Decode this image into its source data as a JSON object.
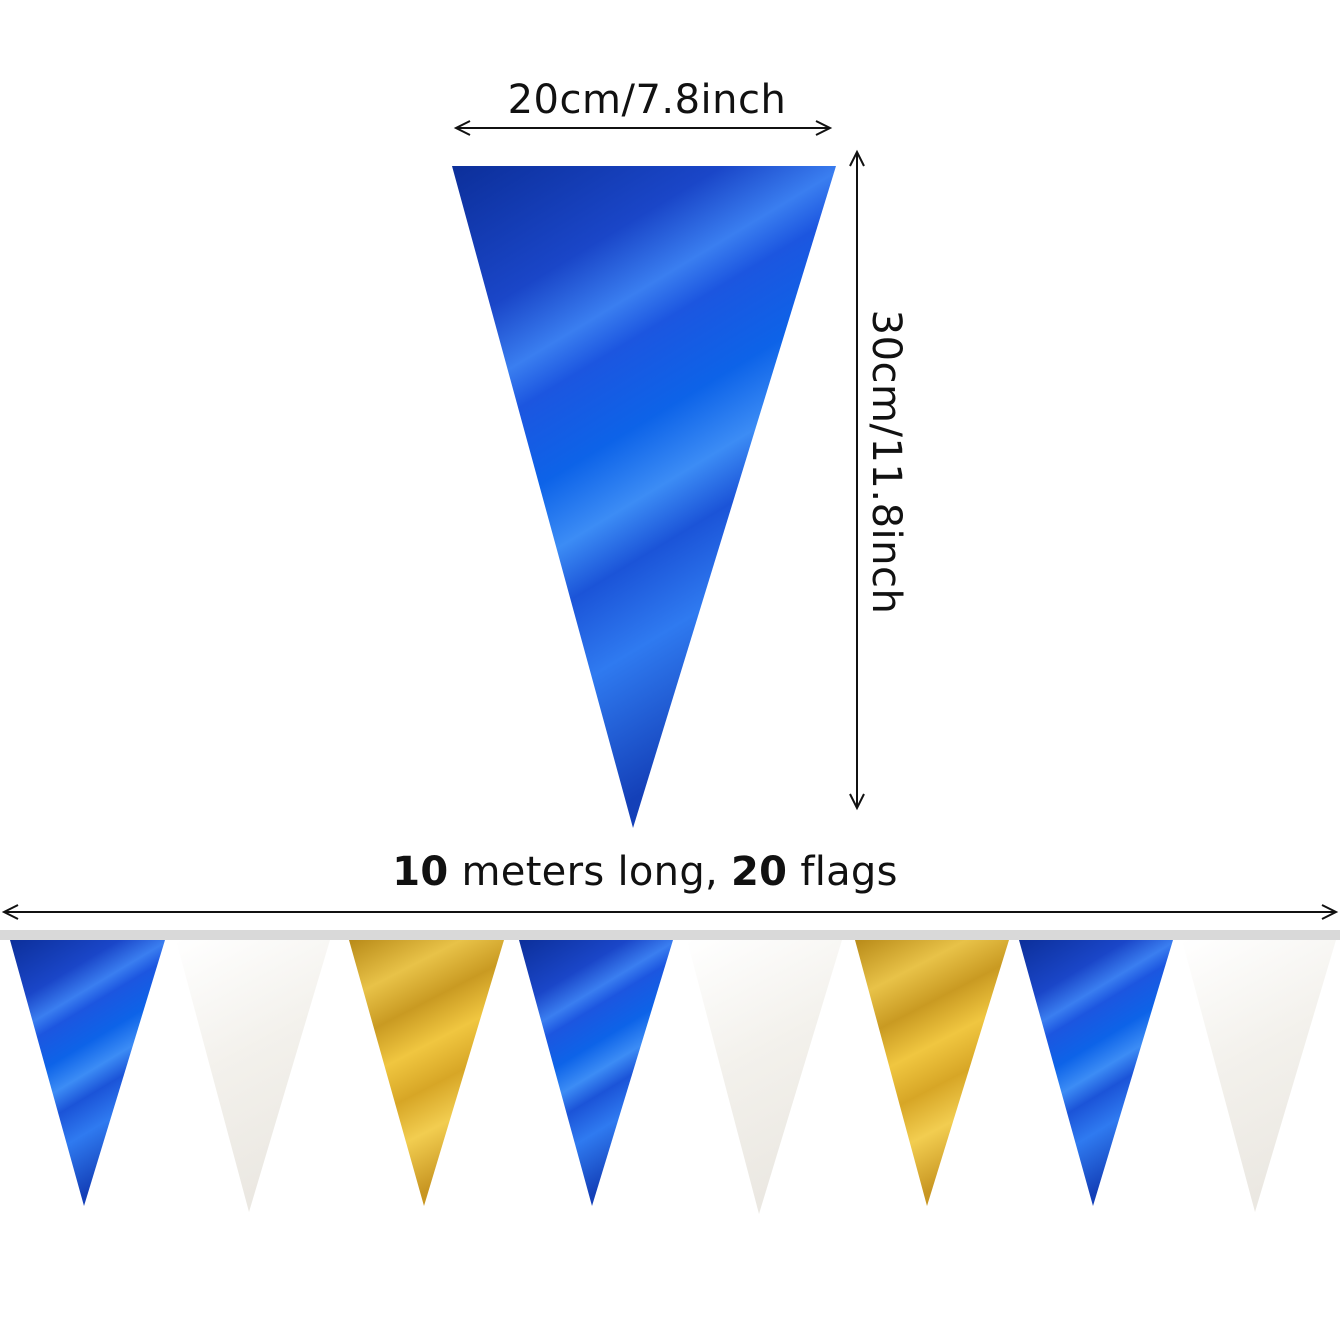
{
  "dimensions": {
    "width_label": "20cm/7.8inch",
    "height_label": "30cm/11.8inch"
  },
  "banner": {
    "length_number": "10",
    "length_text": "meters long,",
    "flags_number": "20",
    "flags_text": "flags",
    "flag_colors": [
      "blue",
      "white",
      "gold",
      "blue",
      "white",
      "gold",
      "blue",
      "white"
    ]
  },
  "colors": {
    "blue": "#1848d0",
    "white": "#f4f2ee",
    "gold": "#e0b030",
    "string": "#d8d8d8",
    "arrow": "#111111"
  }
}
